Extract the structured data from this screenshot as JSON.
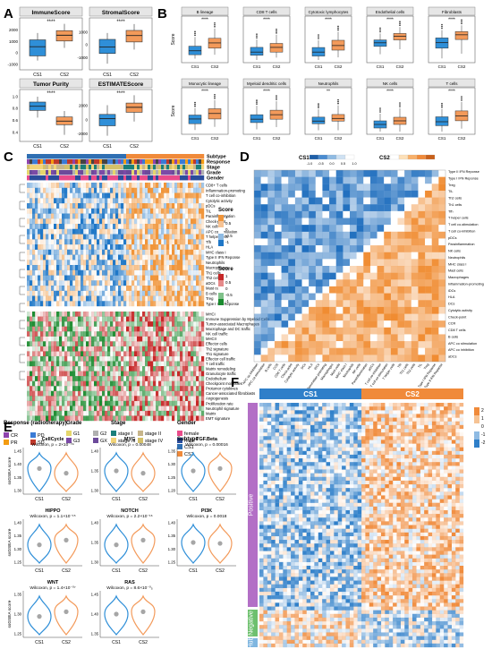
{
  "colors": {
    "cs1": "#2f8fd8",
    "cs2": "#f39a5a",
    "heat_high": "#f0953a",
    "heat_low": "#1f77c7",
    "heat_mid": "#ffffff",
    "green": "#1a8a2e",
    "red": "#c62828"
  },
  "panels": {
    "a": "A",
    "b": "B",
    "c": "C",
    "d": "D",
    "e": "E",
    "f": "F"
  },
  "sig": {
    "four": "****",
    "two": "**"
  },
  "panel_a": {
    "plots": [
      {
        "title": "ImmuneScore",
        "yticks": [
          "-1000",
          "0",
          "1000",
          "2000"
        ],
        "cs1": [
          -700,
          -300,
          500,
          1100,
          1700
        ],
        "cs2": [
          400,
          1000,
          1500,
          1900,
          2500
        ],
        "ymin": -1200,
        "ymax": 2700
      },
      {
        "title": "StromalScore",
        "yticks": [
          "-1000",
          "0",
          "1000"
        ],
        "cs1": [
          -1500,
          -700,
          -200,
          400,
          900
        ],
        "cs2": [
          -400,
          200,
          700,
          1100,
          1600
        ],
        "ymin": -1700,
        "ymax": 1800
      },
      {
        "title": "Tumor Purity",
        "yticks": [
          "0.4",
          "0.6",
          "0.8",
          "1.0"
        ],
        "cs1": [
          0.64,
          0.76,
          0.83,
          0.9,
          0.99
        ],
        "cs2": [
          0.35,
          0.52,
          0.58,
          0.65,
          0.75
        ],
        "ymin": 0.3,
        "ymax": 1.05
      },
      {
        "title": "ESTIMATEScore",
        "yticks": [
          "-2000",
          "0",
          "2000"
        ],
        "cs1": [
          -2300,
          -900,
          100,
          700,
          2000
        ],
        "cs2": [
          -300,
          1000,
          1700,
          2300,
          3400
        ],
        "ymin": -2600,
        "ymax": 3700
      }
    ],
    "xlabels": [
      "CS1",
      "CS2"
    ]
  },
  "panel_b": {
    "plots": [
      {
        "title": "B lineage",
        "cs1": [
          0.2,
          0.8,
          1.4,
          2.1,
          3.5
        ],
        "cs2": [
          0.8,
          1.8,
          2.6,
          3.3,
          4.8
        ],
        "ymax": 6
      },
      {
        "title": "CD8 T cells",
        "cs1": [
          0.0,
          0.6,
          1.0,
          1.6,
          2.6
        ],
        "cs2": [
          0.3,
          1.0,
          1.6,
          2.1,
          3.2
        ],
        "ymax": 5
      },
      {
        "title": "Cytotoxic lymphocytes",
        "cs1": [
          0.0,
          0.6,
          1.2,
          1.9,
          3.0
        ],
        "cs2": [
          0.4,
          1.5,
          2.2,
          3.0,
          4.3
        ],
        "ymax": 6
      },
      {
        "title": "Endothelial cells",
        "cs1": [
          0.8,
          1.9,
          2.4,
          2.8,
          3.7
        ],
        "cs2": [
          1.5,
          2.8,
          3.3,
          3.7,
          4.6
        ],
        "ymax": 5.5
      },
      {
        "title": "Fibroblasts",
        "cs1": [
          0.2,
          1.5,
          2.2,
          2.8,
          3.8
        ],
        "cs2": [
          0.8,
          2.6,
          3.2,
          3.6,
          4.4
        ],
        "ymax": 5
      },
      {
        "title": "Monocytic lineage",
        "cs1": [
          0.2,
          1.0,
          1.6,
          2.1,
          3.0
        ],
        "cs2": [
          0.6,
          1.6,
          2.3,
          2.9,
          4.0
        ],
        "ymax": 5
      },
      {
        "title": "Myeloid dendritic cells",
        "cs1": [
          0.2,
          0.8,
          1.1,
          1.5,
          2.3
        ],
        "cs2": [
          0.4,
          1.1,
          1.5,
          1.9,
          2.7
        ],
        "ymax": 3.5
      },
      {
        "title": "Neutrophils",
        "cs1": [
          0.1,
          0.6,
          0.8,
          1.1,
          1.7
        ],
        "cs2": [
          0.1,
          0.8,
          1.0,
          1.3,
          2.0
        ],
        "ymax": 3
      },
      {
        "title": "NK cells",
        "cs1": [
          0.0,
          0.2,
          0.4,
          0.6,
          1.0
        ],
        "cs2": [
          0.0,
          0.4,
          0.6,
          0.8,
          1.3
        ],
        "ymax": 2.2
      },
      {
        "title": "T cells",
        "cs1": [
          0.0,
          0.6,
          1.0,
          1.5,
          2.3
        ],
        "cs2": [
          0.3,
          1.1,
          1.6,
          2.1,
          3.0
        ],
        "ymax": 4
      }
    ],
    "sig_labels": [
      "****",
      "****",
      "****",
      "****",
      "****",
      "****",
      "****",
      "**",
      "****",
      "****"
    ],
    "ylabel": "Score",
    "xlabels": [
      "CS1",
      "CS2"
    ]
  },
  "panel_c": {
    "anno_labels": [
      "Subtype",
      "Response",
      "Stage",
      "Grade",
      "Gender"
    ],
    "rows_top": [
      "CD8+ T cells",
      "Inflammation-promoting",
      "T cell co-inhibition",
      "Cytolytic activity",
      "pDCs",
      "TIL",
      "Parainflammation",
      "Check-point",
      "NK cells",
      "APC co stimulation",
      "T helper cells",
      "Tfh",
      "HLA",
      "MHC class I",
      "Type II IFN Reponse",
      "Neutrophils",
      "Macrophages",
      "Th1 cells",
      "Th2 cells",
      "aDCs",
      "Mast cells",
      "B cells",
      "Treg",
      "Type I IFN Reponse"
    ],
    "rows_bottom": [
      "MHCI",
      "Immune Suppression by Myeloid Cells",
      "Tumor-associated Macrophages",
      "Macrophage and DC traffic",
      "NK cell traffic",
      "MHCII",
      "Effector cells",
      "Th2 signature",
      "Th1 signature",
      "Effector cell traffic",
      "T cell traffic",
      "Matrix remodeling",
      "Granulocyte traffic",
      "Endothelium",
      "Checkpoint molecules",
      "Protumor cytokines",
      "Cancer-associated fibroblasts",
      "Angiogenesis",
      "Proliferation rate",
      "Neutrophil signature",
      "Matrix",
      "EMT signature"
    ],
    "score_label": "Score",
    "score_ticks_top": [
      "1",
      "0.5",
      "0",
      "-0.5",
      "-1"
    ],
    "score_ticks_bottom": [
      "1",
      "0.5",
      "0",
      "-0.5",
      "-1"
    ],
    "legend": {
      "response_title": "Response (radiotherapy)",
      "response_items": [
        "CR",
        "PD",
        "PR",
        "SD"
      ],
      "response_colors": [
        "#8e44ad",
        "#3a7bd5",
        "#f39c12",
        "#c0392b"
      ],
      "grade_title": "Grade",
      "grade_items": [
        "G1",
        "G2",
        "G3",
        "GX"
      ],
      "grade_colors": [
        "#e5d66b",
        "#b0b0b0",
        "#7b4aa6",
        "#6c4a9a"
      ],
      "stage_title": "Stage",
      "stage_items": [
        "stage I",
        "stage II",
        "stage III",
        "stage IV"
      ],
      "stage_colors": [
        "#1b7f7a",
        "#c7b58a",
        "#f2d479",
        "#d4c06a"
      ],
      "gender_title": "Gender",
      "gender_items": [
        "female",
        "male"
      ],
      "gender_colors": [
        "#e94b8a",
        "#2a4d9b"
      ],
      "subtype_title": "Subtype",
      "subtype_items": [
        "CS1",
        "CS2"
      ],
      "subtype_colors": [
        "#2f6fb3",
        "#f08a3a"
      ]
    }
  },
  "panel_d": {
    "legend_cs1": "CS1",
    "legend_cs2": "CS2",
    "scale_ticks": [
      "-1.0",
      "-0.5",
      "0.0",
      "0.5",
      "1.0"
    ],
    "rows": [
      "Type II IFN Reponse",
      "Type I IFN Reponse",
      "Treg",
      "TIL",
      "Th2 cells",
      "Th1 cells",
      "Tfh",
      "T helper cells",
      "T cell co-stimulation",
      "T cell co-inhibition",
      "pDCs",
      "Parainflammation",
      "NK cells",
      "Neutrophils",
      "MHC class I",
      "Mast cells",
      "Macrophages",
      "Inflammation-promoting",
      "iDCs",
      "HLA",
      "DCs",
      "Cytolytic activity",
      "Check-point",
      "CCR",
      "CD8 T cells",
      "B cells",
      "APC co stimulation",
      "APC co inhibition",
      "aDCs"
    ],
    "cols": [
      "APC co inhibition",
      "APC co stimulation",
      "B cells",
      "CCR",
      "CD8 T cells",
      "Check-point",
      "Cytolytic activity",
      "DCs",
      "HLA",
      "iDCs",
      "Inflammation promoting",
      "Macrophages",
      "Mast cells",
      "MHC class I",
      "Neutrophils",
      "NK cells",
      "Parainflammation",
      "pDCs",
      "T cell co-inhibition",
      "T cell co-stimulation",
      "T helper cells",
      "Tfh",
      "Th1 cells",
      "Th2 cells",
      "TIL",
      "Treg",
      "Type I IFN Reponse",
      "Type II IFN Reponse"
    ]
  },
  "panel_e": {
    "plots": [
      {
        "title": "CellCycle",
        "pval": "Wilcoxon, p = 2×10⁻⁰⁹",
        "yticks": [
          "1.30",
          "1.35",
          "1.40",
          "1.45"
        ],
        "m1": 0.55,
        "m2": 0.45
      },
      {
        "title": "MYC",
        "pval": "Wilcoxon, p = 0.00048",
        "yticks": [
          "1.30",
          "1.35",
          "1.40"
        ],
        "m1": 0.5,
        "m2": 0.45
      },
      {
        "title": "TGF.Beta",
        "pval": "Wilcoxon, p = 0.00016",
        "yticks": [
          "1.20",
          "1.25",
          "1.30",
          "1.35"
        ],
        "m1": 0.5,
        "m2": 0.55
      },
      {
        "title": "HIPPO",
        "pval": "Wilcoxon, p = 1.1×10⁻¹⁵",
        "yticks": [
          "1.25",
          "1.30",
          "1.35",
          "1.40"
        ],
        "m1": 0.45,
        "m2": 0.55
      },
      {
        "title": "NOTCH",
        "pval": "Wilcoxon, p = 2.2×10⁻¹⁶",
        "yticks": [
          "1.30",
          "1.35",
          "1.40"
        ],
        "m1": 0.45,
        "m2": 0.55
      },
      {
        "title": "PI3K",
        "pval": "Wilcoxon, p = 0.0018",
        "yticks": [
          "1.25",
          "1.30",
          "1.35",
          "1.40"
        ],
        "m1": 0.5,
        "m2": 0.48
      },
      {
        "title": "WNT",
        "pval": "Wilcoxon, p = 1.4×10⁻⁰⁷",
        "yticks": [
          "1.25",
          "1.30",
          "1.35"
        ],
        "m1": 0.45,
        "m2": 0.55
      },
      {
        "title": "RAS",
        "pval": "Wilcoxon, p = 8.6×10⁻⁰₅",
        "yticks": [
          "1.35",
          "1.40",
          "1.45"
        ],
        "m1": 0.5,
        "m2": 0.55
      }
    ],
    "ylabel": "ssGSEA score",
    "xlabels": [
      "CS1",
      "CS2"
    ]
  },
  "panel_f": {
    "header_cs1": "CS1",
    "header_cs2": "CS2",
    "group_positive": "Positive",
    "group_negative": "Negative",
    "group_other": "Hub",
    "scale_ticks": [
      "2",
      "1",
      "0",
      "-1",
      "-2"
    ]
  }
}
